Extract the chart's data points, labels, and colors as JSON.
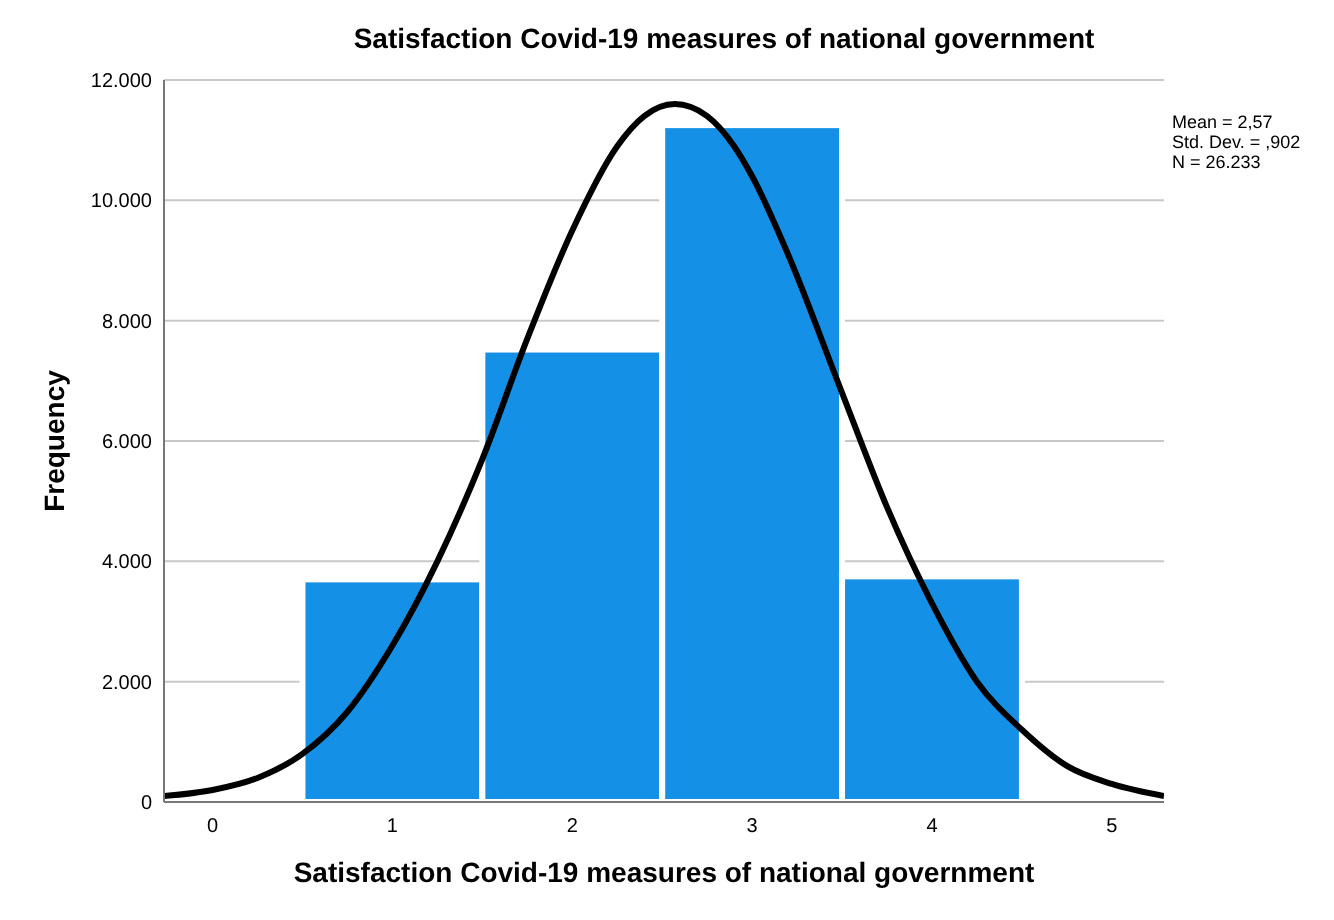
{
  "chart_data": {
    "type": "histogram",
    "title": "Satisfaction Covid-19 measures of national government",
    "xlabel": "Satisfaction Covid-19 measures of national government",
    "ylabel": "Frequency",
    "bins": [
      0.5,
      1.5,
      2.5,
      3.5,
      4.5
    ],
    "series": [
      {
        "color": "#1490e6",
        "values": [
          3700,
          7520,
          11250,
          3750
        ]
      },
      {
        "type": "line",
        "color": "#000000",
        "x": [
          -0.27,
          0,
          0.25,
          0.5,
          0.75,
          1,
          1.25,
          1.5,
          1.75,
          2,
          2.25,
          2.4,
          2.57,
          2.75,
          2.9,
          3,
          3.2,
          3.5,
          3.75,
          4,
          4.25,
          4.5,
          4.75,
          5,
          5.29
        ],
        "values": [
          100,
          200,
          400,
          800,
          1500,
          2600,
          4000,
          5700,
          7700,
          9500,
          10900,
          11400,
          11600,
          11400,
          10900,
          10400,
          9100,
          6800,
          4900,
          3300,
          2000,
          1200,
          600,
          300,
          100
        ]
      }
    ],
    "xlim": [
      -0.27,
      5.29
    ],
    "xticks": [
      0,
      1,
      2,
      3,
      4,
      5
    ],
    "ylim": [
      0,
      12000
    ],
    "yticks": [
      0,
      {
        "value": 2000,
        "label": "2.000"
      },
      {
        "value": 4000,
        "label": "4.000"
      },
      {
        "value": 6000,
        "label": "6.000"
      },
      {
        "value": 8000,
        "label": "8.000"
      },
      {
        "value": 10000,
        "label": "10.000"
      },
      {
        "value": 12000,
        "label": "12.000"
      }
    ],
    "grid": "y",
    "annotations": [
      "Mean = 2,57",
      "Std. Dev. = ,902",
      "N = 26.233"
    ]
  }
}
